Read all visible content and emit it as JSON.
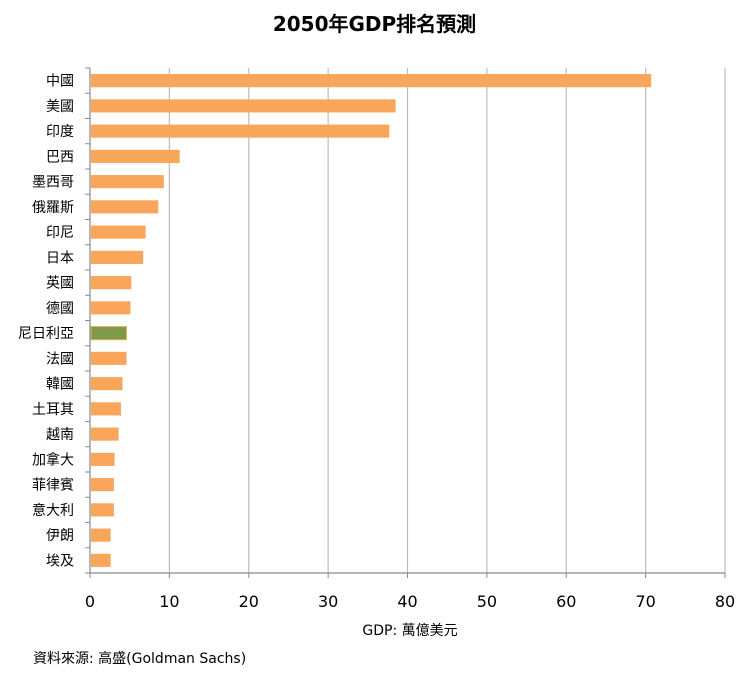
{
  "chart_data": {
    "type": "bar",
    "orientation": "horizontal",
    "title": "2050年GDP排名預測",
    "xlabel": "GDP: 萬億美元",
    "source": "資料來源: 高盛(Goldman Sachs)",
    "categories": [
      "中國",
      "美國",
      "印度",
      "巴西",
      "墨西哥",
      "俄羅斯",
      "印尼",
      "日本",
      "英國",
      "德國",
      "尼日利亞",
      "法國",
      "韓國",
      "土耳其",
      "越南",
      "加拿大",
      "菲律賓",
      "意大利",
      "伊朗",
      "埃及"
    ],
    "values": [
      70.7,
      38.5,
      37.7,
      11.3,
      9.3,
      8.6,
      7.0,
      6.7,
      5.2,
      5.1,
      4.6,
      4.6,
      4.1,
      3.9,
      3.6,
      3.1,
      3.0,
      3.0,
      2.6,
      2.6
    ],
    "highlight_index": 10,
    "xlim": [
      0,
      80
    ],
    "ticks": [
      "0",
      "10",
      "20",
      "30",
      "40",
      "50",
      "60",
      "70",
      "80"
    ],
    "grid": true,
    "colors": {
      "bar": "#F9A65A",
      "highlight": "#7D9A4A",
      "grid": "#BDBDBD",
      "axis": "#8A8A8A"
    }
  }
}
